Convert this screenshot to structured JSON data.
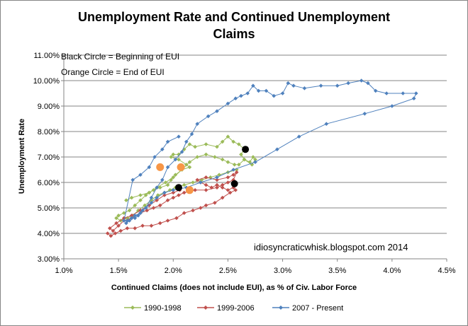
{
  "chart_data": {
    "type": "scatter",
    "title_lines": [
      "Unemployment Rate and Continued  Unemployment",
      "Claims"
    ],
    "xlabel": "Continued Claims (does not include  EUI), as % of Civ. Labor Force",
    "ylabel": "Unemployment Rate",
    "xlim": [
      1.0,
      4.5
    ],
    "ylim": [
      3.0,
      11.0
    ],
    "x_ticks": [
      1.0,
      1.5,
      2.0,
      2.5,
      3.0,
      3.5,
      4.0,
      4.5
    ],
    "x_tick_labels": [
      "1.0%",
      "1.5%",
      "2.0%",
      "2.5%",
      "3.0%",
      "3.5%",
      "4.0%",
      "4.5%"
    ],
    "y_ticks": [
      3,
      4,
      5,
      6,
      7,
      8,
      9,
      10,
      11
    ],
    "y_tick_labels": [
      "3.00%",
      "4.00%",
      "5.00%",
      "6.00%",
      "7.00%",
      "8.00%",
      "9.00%",
      "10.00%",
      "11.00%"
    ],
    "grid": true,
    "legend_position": "bottom",
    "annotations": [
      "Black Circle = Beginning of EUI",
      "Orange Circle = End of EUI"
    ],
    "credit": "idiosyncraticwhisk.blogspot.com  2014",
    "colors": {
      "1990-1998": "#9bbb59",
      "1999-2006": "#c0504d",
      "2007 - Present": "#4f81bd",
      "begin_marker": "#000000",
      "end_marker": "#f79646",
      "grid": "#868686"
    },
    "series": [
      {
        "name": "1990-1998",
        "marker": "diamond",
        "points": [
          [
            1.57,
            5.3
          ],
          [
            1.62,
            5.4
          ],
          [
            1.7,
            5.5
          ],
          [
            1.78,
            5.6
          ],
          [
            1.85,
            5.8
          ],
          [
            1.93,
            6.0
          ],
          [
            2.0,
            6.2
          ],
          [
            2.08,
            6.5
          ],
          [
            2.15,
            6.8
          ],
          [
            2.22,
            7.0
          ],
          [
            2.3,
            7.1
          ],
          [
            2.38,
            7.0
          ],
          [
            2.45,
            6.9
          ],
          [
            2.5,
            6.8
          ],
          [
            2.56,
            6.7
          ],
          [
            2.6,
            6.7
          ],
          [
            2.65,
            6.9
          ],
          [
            2.7,
            6.8
          ],
          [
            2.73,
            7.0
          ],
          [
            2.75,
            6.9
          ],
          [
            2.72,
            6.7
          ],
          [
            2.65,
            6.9
          ],
          [
            2.62,
            7.1
          ],
          [
            2.65,
            7.3
          ],
          [
            2.6,
            7.5
          ],
          [
            2.55,
            7.6
          ],
          [
            2.5,
            7.8
          ],
          [
            2.45,
            7.6
          ],
          [
            2.4,
            7.4
          ],
          [
            2.3,
            7.5
          ],
          [
            2.2,
            7.4
          ],
          [
            2.15,
            7.5
          ],
          [
            2.1,
            7.3
          ],
          [
            2.05,
            7.1
          ],
          [
            2.0,
            7.1
          ],
          [
            1.98,
            7.0
          ],
          [
            2.05,
            6.9
          ],
          [
            2.12,
            6.7
          ],
          [
            2.15,
            6.6
          ],
          [
            2.08,
            6.5
          ],
          [
            2.02,
            6.3
          ],
          [
            1.98,
            6.1
          ],
          [
            1.95,
            5.9
          ],
          [
            1.88,
            5.8
          ],
          [
            1.82,
            5.7
          ],
          [
            1.78,
            5.6
          ],
          [
            1.75,
            5.5
          ],
          [
            1.7,
            5.3
          ],
          [
            1.65,
            5.1
          ],
          [
            1.6,
            4.9
          ],
          [
            1.55,
            4.8
          ],
          [
            1.5,
            4.7
          ],
          [
            1.48,
            4.6
          ],
          [
            1.52,
            4.5
          ],
          [
            1.58,
            4.6
          ],
          [
            1.63,
            4.7
          ],
          [
            1.68,
            4.9
          ],
          [
            1.74,
            5.1
          ],
          [
            1.8,
            5.3
          ],
          [
            1.86,
            5.5
          ],
          [
            1.92,
            5.6
          ],
          [
            1.97,
            5.7
          ],
          [
            2.02,
            5.8
          ],
          [
            2.1,
            5.9
          ],
          [
            2.18,
            6.0
          ],
          [
            2.26,
            6.1
          ],
          [
            2.34,
            6.2
          ],
          [
            2.42,
            6.3
          ],
          [
            2.5,
            6.4
          ],
          [
            2.58,
            6.5
          ]
        ]
      },
      {
        "name": "1999-2006",
        "marker": "diamond",
        "points": [
          [
            1.4,
            4.0
          ],
          [
            1.43,
            3.9
          ],
          [
            1.47,
            4.0
          ],
          [
            1.52,
            4.1
          ],
          [
            1.58,
            4.2
          ],
          [
            1.65,
            4.2
          ],
          [
            1.72,
            4.3
          ],
          [
            1.8,
            4.3
          ],
          [
            1.88,
            4.4
          ],
          [
            1.95,
            4.5
          ],
          [
            2.03,
            4.6
          ],
          [
            2.1,
            4.8
          ],
          [
            2.18,
            4.9
          ],
          [
            2.25,
            5.0
          ],
          [
            2.3,
            5.1
          ],
          [
            2.38,
            5.2
          ],
          [
            2.45,
            5.4
          ],
          [
            2.52,
            5.6
          ],
          [
            2.57,
            5.7
          ],
          [
            2.55,
            5.8
          ],
          [
            2.5,
            5.7
          ],
          [
            2.45,
            5.8
          ],
          [
            2.4,
            5.9
          ],
          [
            2.35,
            5.8
          ],
          [
            2.3,
            5.9
          ],
          [
            2.25,
            6.0
          ],
          [
            2.22,
            6.1
          ],
          [
            2.3,
            6.2
          ],
          [
            2.4,
            6.1
          ],
          [
            2.5,
            6.2
          ],
          [
            2.55,
            6.3
          ],
          [
            2.58,
            6.4
          ],
          [
            2.55,
            6.1
          ],
          [
            2.5,
            6.0
          ],
          [
            2.45,
            5.9
          ],
          [
            2.4,
            5.8
          ],
          [
            2.3,
            5.7
          ],
          [
            2.2,
            5.7
          ],
          [
            2.1,
            5.6
          ],
          [
            2.05,
            5.5
          ],
          [
            2.0,
            5.4
          ],
          [
            1.95,
            5.3
          ],
          [
            1.88,
            5.1
          ],
          [
            1.82,
            5.0
          ],
          [
            1.76,
            4.9
          ],
          [
            1.7,
            4.8
          ],
          [
            1.62,
            4.6
          ],
          [
            1.55,
            4.5
          ],
          [
            1.5,
            4.3
          ],
          [
            1.45,
            4.1
          ],
          [
            1.42,
            4.2
          ],
          [
            1.48,
            4.4
          ],
          [
            1.55,
            4.6
          ],
          [
            1.62,
            4.7
          ],
          [
            1.7,
            4.9
          ],
          [
            1.78,
            5.1
          ],
          [
            1.85,
            5.3
          ],
          [
            1.92,
            5.5
          ],
          [
            2.0,
            5.6
          ],
          [
            2.06,
            5.7
          ]
        ]
      },
      {
        "name": "2007 - Present",
        "marker": "diamond",
        "points": [
          [
            1.57,
            4.4
          ],
          [
            1.6,
            4.5
          ],
          [
            1.62,
            4.6
          ],
          [
            1.65,
            4.6
          ],
          [
            1.68,
            4.7
          ],
          [
            1.7,
            4.8
          ],
          [
            1.72,
            4.9
          ],
          [
            1.75,
            5.0
          ],
          [
            1.8,
            5.4
          ],
          [
            1.85,
            5.8
          ],
          [
            1.9,
            6.1
          ],
          [
            1.95,
            6.6
          ],
          [
            2.02,
            6.9
          ],
          [
            2.08,
            7.2
          ],
          [
            2.12,
            7.6
          ],
          [
            2.17,
            7.9
          ],
          [
            2.22,
            8.3
          ],
          [
            2.32,
            8.6
          ],
          [
            2.4,
            8.8
          ],
          [
            2.5,
            9.1
          ],
          [
            2.57,
            9.3
          ],
          [
            2.62,
            9.4
          ],
          [
            2.68,
            9.5
          ],
          [
            2.73,
            9.8
          ],
          [
            2.78,
            9.6
          ],
          [
            2.85,
            9.6
          ],
          [
            2.92,
            9.4
          ],
          [
            3.0,
            9.5
          ],
          [
            3.05,
            9.9
          ],
          [
            3.1,
            9.8
          ],
          [
            3.2,
            9.7
          ],
          [
            3.35,
            9.8
          ],
          [
            3.5,
            9.8
          ],
          [
            3.6,
            9.9
          ],
          [
            3.72,
            10.0
          ],
          [
            3.78,
            9.9
          ],
          [
            3.85,
            9.6
          ],
          [
            3.95,
            9.5
          ],
          [
            4.1,
            9.5
          ],
          [
            4.22,
            9.5
          ],
          [
            4.2,
            9.3
          ],
          [
            4.0,
            9.0
          ],
          [
            3.75,
            8.7
          ],
          [
            3.4,
            8.3
          ],
          [
            3.15,
            7.8
          ],
          [
            2.95,
            7.3
          ],
          [
            2.75,
            6.8
          ],
          [
            2.55,
            6.5
          ],
          [
            2.4,
            6.2
          ],
          [
            2.25,
            6.0
          ],
          [
            2.12,
            5.8
          ],
          [
            2.0,
            5.7
          ],
          [
            1.92,
            5.6
          ],
          [
            1.85,
            5.4
          ],
          [
            1.8,
            5.2
          ],
          [
            1.75,
            5.0
          ],
          [
            1.7,
            4.8
          ],
          [
            1.65,
            4.7
          ],
          [
            1.62,
            4.6
          ],
          [
            1.58,
            4.5
          ],
          [
            1.55,
            4.5
          ],
          [
            1.63,
            6.1
          ],
          [
            1.7,
            6.3
          ],
          [
            1.78,
            6.6
          ],
          [
            1.83,
            7.0
          ],
          [
            1.9,
            7.3
          ],
          [
            1.95,
            7.6
          ],
          [
            2.05,
            7.8
          ]
        ]
      }
    ],
    "begin_markers": [
      [
        2.66,
        7.3
      ],
      [
        2.05,
        5.8
      ],
      [
        2.56,
        5.95
      ]
    ],
    "end_markers": [
      [
        1.88,
        6.6
      ],
      [
        2.07,
        6.6
      ],
      [
        2.15,
        5.7
      ]
    ]
  }
}
